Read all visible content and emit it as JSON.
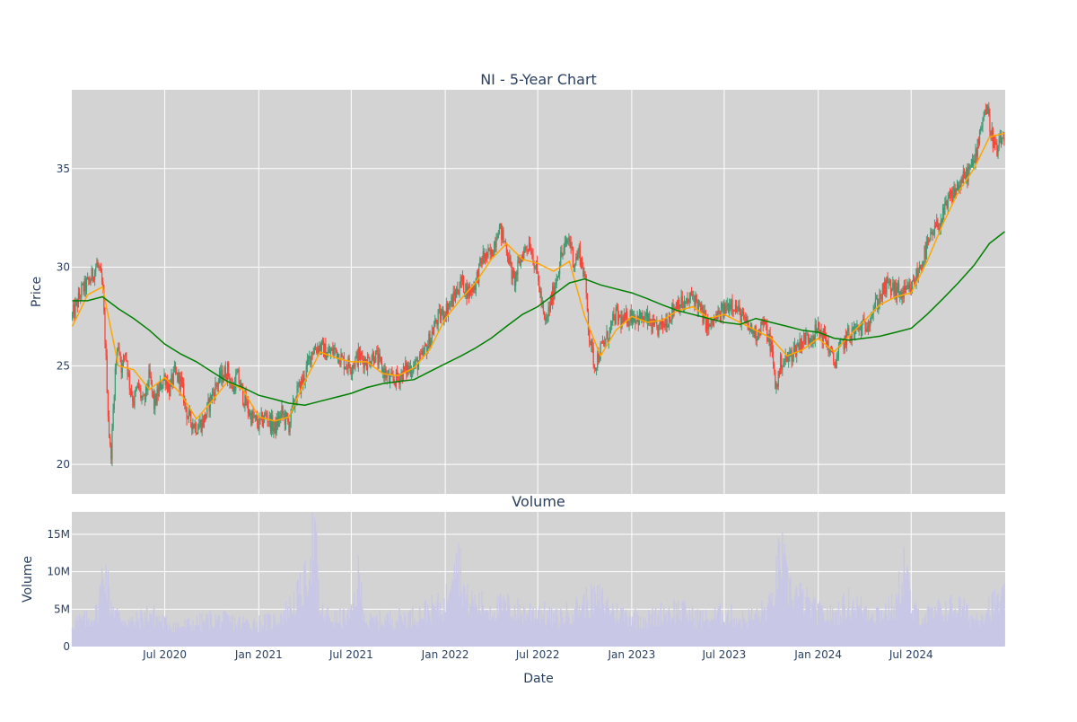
{
  "chart_data": [
    {
      "type": "candlestick",
      "title": "NI - 5-Year Chart",
      "xlabel": "",
      "ylabel": "Price",
      "ylim": [
        18.5,
        39.0
      ],
      "y_ticks": [
        20,
        25,
        30,
        35
      ],
      "x_tick_labels": [
        "Jul 2020",
        "Jan 2021",
        "Jul 2021",
        "Jan 2022",
        "Jul 2022",
        "Jan 2023",
        "Jul 2023",
        "Jan 2024",
        "Jul 2024"
      ],
      "x_tick_dates": [
        "2020-07-01",
        "2021-01-01",
        "2021-07-01",
        "2022-01-01",
        "2022-07-01",
        "2023-01-01",
        "2023-07-01",
        "2024-01-01",
        "2024-07-01"
      ],
      "xlim": [
        "2020-01-01",
        "2025-01-01"
      ],
      "grid": true,
      "colors": {
        "increasing": "#3d9970",
        "decreasing": "#ff4136",
        "short_ma": "#ffa500",
        "long_ma": "#008000",
        "plot_bg": "#d3d3d3"
      },
      "close_series": {
        "dates": [
          "2020-01-02",
          "2020-01-20",
          "2020-02-05",
          "2020-02-20",
          "2020-03-01",
          "2020-03-05",
          "2020-03-10",
          "2020-03-13",
          "2020-03-17",
          "2020-03-20",
          "2020-03-25",
          "2020-04-01",
          "2020-04-08",
          "2020-04-15",
          "2020-04-22",
          "2020-05-01",
          "2020-05-10",
          "2020-05-20",
          "2020-06-01",
          "2020-06-10",
          "2020-06-20",
          "2020-07-01",
          "2020-07-10",
          "2020-07-20",
          "2020-08-01",
          "2020-08-15",
          "2020-09-01",
          "2020-09-15",
          "2020-10-01",
          "2020-10-15",
          "2020-11-01",
          "2020-11-10",
          "2020-11-20",
          "2020-12-01",
          "2020-12-15",
          "2021-01-01",
          "2021-01-15",
          "2021-02-01",
          "2021-02-15",
          "2021-03-01",
          "2021-03-15",
          "2021-04-01",
          "2021-04-15",
          "2021-05-01",
          "2021-05-15",
          "2021-06-01",
          "2021-06-15",
          "2021-07-01",
          "2021-07-15",
          "2021-08-01",
          "2021-08-15",
          "2021-09-01",
          "2021-09-15",
          "2021-10-01",
          "2021-10-15",
          "2021-11-01",
          "2021-11-15",
          "2021-12-01",
          "2021-12-15",
          "2022-01-01",
          "2022-01-15",
          "2022-02-01",
          "2022-02-15",
          "2022-03-01",
          "2022-03-15",
          "2022-04-01",
          "2022-04-15",
          "2022-05-01",
          "2022-05-15",
          "2022-06-01",
          "2022-06-15",
          "2022-07-01",
          "2022-07-15",
          "2022-08-01",
          "2022-08-15",
          "2022-09-01",
          "2022-09-10",
          "2022-09-20",
          "2022-10-01",
          "2022-10-10",
          "2022-10-20",
          "2022-11-01",
          "2022-11-15",
          "2022-12-01",
          "2022-12-15",
          "2023-01-01",
          "2023-01-15",
          "2023-02-01",
          "2023-02-15",
          "2023-03-01",
          "2023-03-15",
          "2023-04-01",
          "2023-04-15",
          "2023-05-01",
          "2023-05-15",
          "2023-06-01",
          "2023-06-15",
          "2023-07-01",
          "2023-07-15",
          "2023-08-01",
          "2023-08-15",
          "2023-09-01",
          "2023-09-15",
          "2023-10-01",
          "2023-10-10",
          "2023-10-20",
          "2023-11-01",
          "2023-11-15",
          "2023-12-01",
          "2023-12-15",
          "2024-01-01",
          "2024-01-15",
          "2024-02-01",
          "2024-02-15",
          "2024-03-01",
          "2024-03-15",
          "2024-04-01",
          "2024-04-15",
          "2024-05-01",
          "2024-05-15",
          "2024-06-01",
          "2024-06-15",
          "2024-07-01",
          "2024-07-15",
          "2024-08-01",
          "2024-08-15",
          "2024-09-01",
          "2024-09-15",
          "2024-10-01",
          "2024-10-15",
          "2024-11-01",
          "2024-11-15",
          "2024-11-25",
          "2024-12-05",
          "2024-12-15",
          "2024-12-31"
        ],
        "values": [
          27.5,
          28.8,
          29.3,
          30.2,
          29.0,
          27.0,
          24.0,
          22.0,
          20.3,
          21.5,
          24.5,
          26.2,
          24.8,
          25.8,
          24.2,
          23.2,
          24.0,
          23.0,
          24.5,
          23.0,
          23.8,
          24.5,
          23.8,
          24.6,
          24.2,
          22.4,
          21.9,
          22.2,
          23.5,
          24.3,
          24.8,
          23.8,
          24.5,
          23.5,
          22.5,
          22.0,
          22.5,
          21.8,
          22.6,
          22.0,
          23.5,
          24.5,
          25.8,
          26.0,
          25.6,
          25.8,
          25.2,
          25.0,
          25.5,
          25.2,
          25.6,
          24.8,
          24.2,
          24.4,
          24.8,
          25.0,
          25.3,
          26.3,
          27.3,
          27.8,
          28.3,
          29.3,
          28.7,
          29.2,
          30.5,
          30.6,
          32.1,
          31.0,
          29.2,
          30.7,
          31.3,
          29.5,
          27.0,
          28.8,
          30.5,
          31.5,
          30.2,
          30.8,
          29.5,
          26.5,
          25.0,
          25.8,
          26.5,
          27.6,
          27.2,
          27.6,
          27.4,
          27.3,
          26.8,
          27.0,
          27.5,
          28.3,
          28.0,
          28.6,
          27.8,
          26.9,
          27.4,
          27.8,
          28.3,
          27.6,
          27.0,
          26.6,
          27.2,
          26.0,
          23.8,
          25.2,
          25.3,
          25.8,
          26.3,
          26.5,
          26.8,
          26.4,
          25.1,
          26.0,
          26.6,
          26.8,
          27.0,
          27.7,
          28.5,
          29.1,
          28.8,
          28.6,
          28.9,
          29.8,
          31.0,
          31.8,
          32.6,
          33.5,
          34.1,
          34.6,
          35.3,
          37.3,
          38.2,
          36.8,
          35.8,
          36.8
        ]
      },
      "series": [
        {
          "dates": [
            "2020-01-02",
            "2020-02-01",
            "2020-03-01",
            "2020-04-01",
            "2020-05-01",
            "2020-06-01",
            "2020-07-01",
            "2020-08-01",
            "2020-09-01",
            "2020-10-01",
            "2020-11-01",
            "2020-12-01",
            "2021-01-01",
            "2021-02-01",
            "2021-03-01",
            "2021-04-01",
            "2021-05-01",
            "2021-06-01",
            "2021-07-01",
            "2021-08-01",
            "2021-09-01",
            "2021-10-01",
            "2021-11-01",
            "2021-12-01",
            "2022-01-01",
            "2022-02-01",
            "2022-03-01",
            "2022-04-01",
            "2022-05-01",
            "2022-06-01",
            "2022-07-01",
            "2022-08-01",
            "2022-09-01",
            "2022-10-01",
            "2022-11-01",
            "2022-12-01",
            "2023-01-01",
            "2023-02-01",
            "2023-03-01",
            "2023-04-01",
            "2023-05-01",
            "2023-06-01",
            "2023-07-01",
            "2023-08-01",
            "2023-09-01",
            "2023-10-01",
            "2023-11-01",
            "2023-12-01",
            "2024-01-01",
            "2024-02-01",
            "2024-03-01",
            "2024-04-01",
            "2024-05-01",
            "2024-06-01",
            "2024-07-01",
            "2024-08-01",
            "2024-09-01",
            "2024-10-01",
            "2024-11-01",
            "2024-12-01",
            "2024-12-31"
          ],
          "values": [
            27.0,
            28.6,
            29.0,
            25.0,
            24.8,
            23.8,
            24.4,
            23.6,
            22.3,
            23.2,
            24.2,
            23.8,
            22.4,
            22.2,
            22.4,
            24.2,
            25.7,
            25.4,
            25.2,
            25.2,
            24.6,
            24.5,
            24.9,
            25.8,
            27.4,
            28.4,
            29.2,
            30.4,
            31.2,
            30.4,
            30.2,
            29.8,
            30.3,
            27.5,
            25.5,
            26.8,
            27.5,
            27.2,
            27.3,
            27.8,
            28.0,
            27.4,
            27.6,
            27.2,
            26.8,
            26.4,
            25.5,
            25.8,
            26.4,
            25.7,
            26.5,
            27.3,
            28.1,
            28.5,
            28.7,
            30.3,
            32.2,
            33.8,
            35.0,
            36.6,
            36.8
          ]
        },
        {
          "dates": [
            "2020-01-02",
            "2020-02-01",
            "2020-03-01",
            "2020-04-01",
            "2020-05-01",
            "2020-06-01",
            "2020-07-01",
            "2020-08-01",
            "2020-09-01",
            "2020-10-01",
            "2020-11-01",
            "2020-12-01",
            "2021-01-01",
            "2021-02-01",
            "2021-03-01",
            "2021-04-01",
            "2021-05-01",
            "2021-06-01",
            "2021-07-01",
            "2021-08-01",
            "2021-09-01",
            "2021-10-01",
            "2021-11-01",
            "2021-12-01",
            "2022-01-01",
            "2022-02-01",
            "2022-03-01",
            "2022-04-01",
            "2022-05-01",
            "2022-06-01",
            "2022-07-01",
            "2022-08-01",
            "2022-09-01",
            "2022-10-01",
            "2022-11-01",
            "2022-12-01",
            "2023-01-01",
            "2023-02-01",
            "2023-03-01",
            "2023-04-01",
            "2023-05-01",
            "2023-06-01",
            "2023-07-01",
            "2023-08-01",
            "2023-09-01",
            "2023-10-01",
            "2023-11-01",
            "2023-12-01",
            "2024-01-01",
            "2024-02-01",
            "2024-03-01",
            "2024-04-01",
            "2024-05-01",
            "2024-06-01",
            "2024-07-01",
            "2024-08-01",
            "2024-09-01",
            "2024-10-01",
            "2024-11-01",
            "2024-12-01",
            "2024-12-31"
          ],
          "values": [
            28.3,
            28.3,
            28.5,
            27.9,
            27.4,
            26.8,
            26.1,
            25.6,
            25.2,
            24.7,
            24.2,
            23.9,
            23.5,
            23.3,
            23.1,
            23.0,
            23.2,
            23.4,
            23.6,
            23.9,
            24.1,
            24.2,
            24.3,
            24.7,
            25.1,
            25.5,
            25.9,
            26.4,
            27.0,
            27.6,
            28.0,
            28.6,
            29.2,
            29.4,
            29.1,
            28.9,
            28.7,
            28.4,
            28.1,
            27.8,
            27.6,
            27.4,
            27.2,
            27.1,
            27.4,
            27.2,
            27.0,
            26.8,
            26.7,
            26.4,
            26.3,
            26.4,
            26.5,
            26.7,
            26.9,
            27.6,
            28.4,
            29.2,
            30.1,
            31.2,
            31.8
          ]
        }
      ]
    },
    {
      "type": "bar",
      "title": "Volume",
      "xlabel": "Date",
      "ylabel": "Volume",
      "ylim": [
        0,
        18000000
      ],
      "y_ticks": [
        0,
        5000000,
        10000000,
        15000000
      ],
      "y_tick_labels": [
        "0",
        "5M",
        "10M",
        "15M"
      ],
      "x_tick_labels": [
        "Jul 2020",
        "Jan 2021",
        "Jul 2021",
        "Jan 2022",
        "Jul 2022",
        "Jan 2023",
        "Jul 2023",
        "Jan 2024",
        "Jul 2024"
      ],
      "x_tick_dates": [
        "2020-07-01",
        "2021-01-01",
        "2021-07-01",
        "2022-01-01",
        "2022-07-01",
        "2023-01-01",
        "2023-07-01",
        "2024-01-01",
        "2024-07-01"
      ],
      "xlim": [
        "2020-01-01",
        "2025-01-01"
      ],
      "grid": true,
      "colors": {
        "bar": "#c8c8e6",
        "plot_bg": "#d3d3d3"
      },
      "volume_series": {
        "dates": [
          "2020-01-02",
          "2020-02-01",
          "2020-02-20",
          "2020-03-05",
          "2020-03-15",
          "2020-04-01",
          "2020-05-01",
          "2020-06-01",
          "2020-07-01",
          "2020-08-01",
          "2020-09-01",
          "2020-10-01",
          "2020-11-01",
          "2020-12-01",
          "2021-01-01",
          "2021-02-01",
          "2021-03-01",
          "2021-04-01",
          "2021-04-20",
          "2021-05-01",
          "2021-06-01",
          "2021-07-01",
          "2021-07-15",
          "2021-08-01",
          "2021-09-01",
          "2021-10-01",
          "2021-11-01",
          "2021-12-01",
          "2022-01-01",
          "2022-01-20",
          "2022-02-10",
          "2022-03-01",
          "2022-04-01",
          "2022-05-01",
          "2022-06-01",
          "2022-07-01",
          "2022-08-01",
          "2022-09-01",
          "2022-10-01",
          "2022-11-01",
          "2022-12-01",
          "2023-01-01",
          "2023-02-01",
          "2023-03-01",
          "2023-04-01",
          "2023-05-01",
          "2023-06-01",
          "2023-07-01",
          "2023-08-01",
          "2023-09-01",
          "2023-10-01",
          "2023-10-20",
          "2023-11-01",
          "2023-12-01",
          "2024-01-01",
          "2024-02-01",
          "2024-03-01",
          "2024-04-01",
          "2024-05-01",
          "2024-06-01",
          "2024-06-20",
          "2024-07-01",
          "2024-08-01",
          "2024-09-01",
          "2024-10-01",
          "2024-11-01",
          "2024-12-01",
          "2024-12-31"
        ],
        "values": [
          3500000,
          4000000,
          5000000,
          12500000,
          7000000,
          4500000,
          3500000,
          5000000,
          3500000,
          3000000,
          3500000,
          4000000,
          3800000,
          3500000,
          3500000,
          3800000,
          5500000,
          9000000,
          17000000,
          5000000,
          4000000,
          4500000,
          10000000,
          3500000,
          4000000,
          4200000,
          4500000,
          5500000,
          6000000,
          16000000,
          7000000,
          6500000,
          5500000,
          6000000,
          5000000,
          5500000,
          4000000,
          5000000,
          6500000,
          7000000,
          5000000,
          4500000,
          4000000,
          5000000,
          5500000,
          4500000,
          4000000,
          5000000,
          4000000,
          4500000,
          6000000,
          14000000,
          9000000,
          7000000,
          5000000,
          4500000,
          6500000,
          5500000,
          5000000,
          6000000,
          13000000,
          5000000,
          4500000,
          5500000,
          6000000,
          4000000,
          6000000,
          7000000
        ]
      }
    }
  ]
}
